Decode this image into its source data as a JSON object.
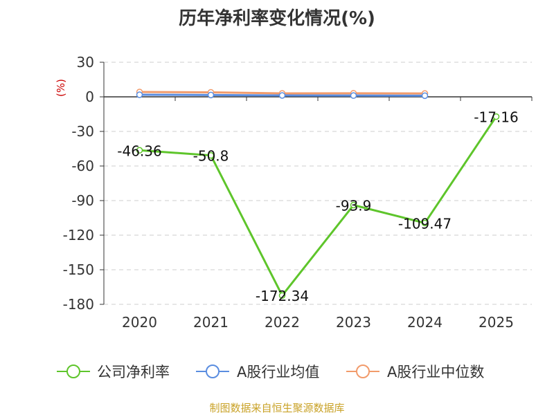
{
  "chart_data": {
    "type": "line",
    "title": "历年净利率变化情况(%)",
    "ylabel": "(%)",
    "categories": [
      "2020",
      "2021",
      "2022",
      "2023",
      "2024",
      "2025"
    ],
    "ylim": [
      -180,
      30
    ],
    "yticks": [
      30,
      0,
      -30,
      -60,
      -90,
      -120,
      -150,
      -180
    ],
    "grid": true,
    "legend_position": "bottom",
    "series": [
      {
        "name": "公司净利率",
        "color": "#5ec52b",
        "values": [
          -46.36,
          -50.8,
          -172.34,
          -93.9,
          -109.47,
          -17.16
        ],
        "labels": [
          "-46.36",
          "-50.8",
          "-172.34",
          "-93.9",
          "-109.47",
          "-17.16"
        ]
      },
      {
        "name": "A股行业均值",
        "color": "#5a8de0",
        "values": [
          1.8,
          1.6,
          1.2,
          1.1,
          1.0,
          null
        ]
      },
      {
        "name": "A股行业中位数",
        "color": "#f29b6b",
        "values": [
          4.2,
          3.9,
          3.0,
          3.1,
          2.9,
          null
        ]
      }
    ],
    "source": "制图数据来自恒生聚源数据库"
  }
}
